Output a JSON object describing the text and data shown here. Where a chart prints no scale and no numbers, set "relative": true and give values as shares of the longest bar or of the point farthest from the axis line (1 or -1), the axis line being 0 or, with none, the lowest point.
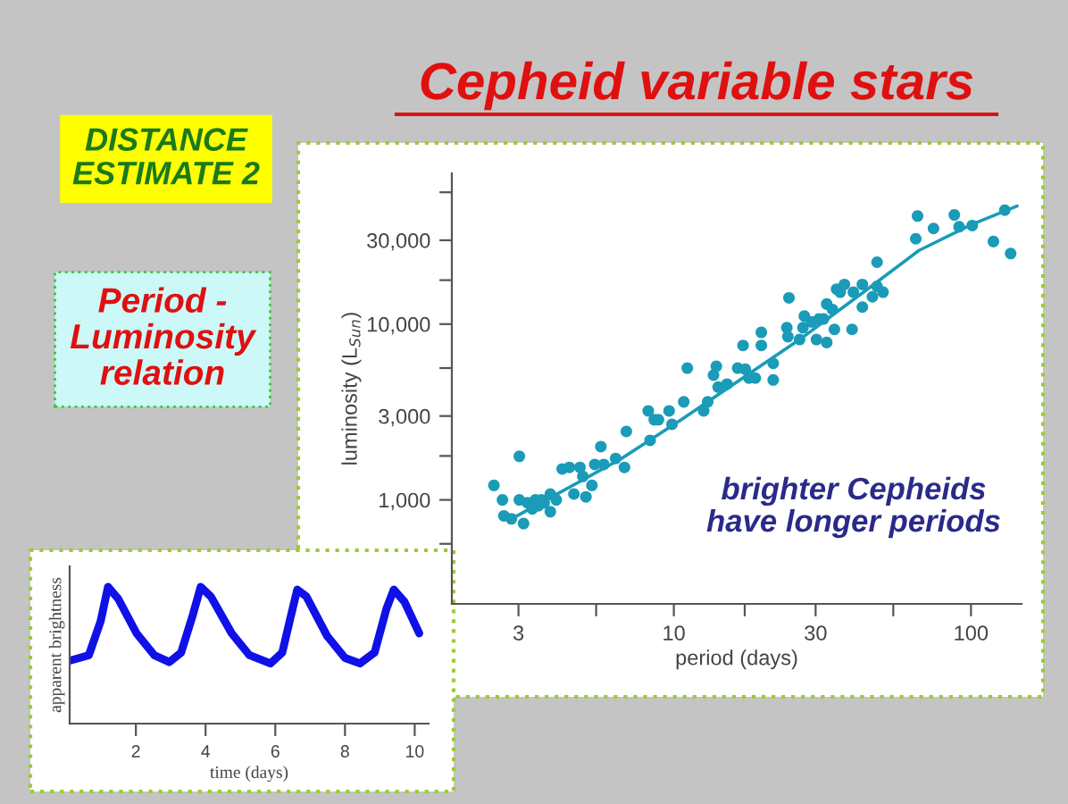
{
  "chart_data": [
    {
      "type": "scatter",
      "title": "Cepheid variable stars",
      "xlabel": "period (days)",
      "ylabel": "luminosity (L$_{Sun}$)",
      "annotations": [
        "DISTANCE\nESTIMATE 2",
        "Period -\nLuminosity\nrelation",
        "brighter Cepheids\nhave longer periods"
      ],
      "log": "xy",
      "grid": false,
      "xlim": [
        1.79,
        148
      ],
      "ylim": [
        256,
        72100
      ],
      "xticks": [
        3,
        {
          "value": 5.477,
          "label": null
        },
        10,
        {
          "value": 17.32,
          "label": null
        },
        30,
        {
          "value": 54.77,
          "label": null
        },
        100
      ],
      "yticks": [
        {
          "value": 562.3,
          "label": null
        },
        {
          "value": 1000,
          "label": "1,000"
        },
        {
          "value": 1778,
          "label": null
        },
        {
          "value": 3000,
          "label": "3,000"
        },
        {
          "value": 5623,
          "label": null
        },
        {
          "value": 10000,
          "label": "10,000"
        },
        {
          "value": 17783,
          "label": null
        },
        {
          "value": 30000,
          "label": "30,000"
        },
        {
          "value": 56234,
          "label": null
        }
      ],
      "series": [
        {
          "type": "scatter",
          "marker": "circle",
          "color": "#1a9bb8",
          "x": [
            2.48,
            2.65,
            2.68,
            2.84,
            3.02,
            3.02,
            3.12,
            3.22,
            3.34,
            3.42,
            3.5,
            3.58,
            3.66,
            3.84,
            3.84,
            4.02,
            4.21,
            4.45,
            4.61,
            4.83,
            4.94,
            5.06,
            5.3,
            5.42,
            5.68,
            5.81,
            6.37,
            6.82,
            6.92,
            8.2,
            8.32,
            8.59,
            8.87,
            9.64,
            9.86,
            10.8,
            11.1,
            12.6,
            13.0,
            13.6,
            13.9,
            14.1,
            15.1,
            16.4,
            17.1,
            17.4,
            17.9,
            18.8,
            19.7,
            19.7,
            21.6,
            21.6,
            24.0,
            24.2,
            24.4,
            26.5,
            27.2,
            27.5,
            29.1,
            30.2,
            30.8,
            31.9,
            32.7,
            32.7,
            34.2,
            34.7,
            35.3,
            36.3,
            37.5,
            39.8,
            40.2,
            43.1,
            43.1,
            46.6,
            48.3,
            48.3,
            50.6,
            65.2,
            66.1,
            74.8,
            87.9,
            91.2,
            101,
            119,
            130,
            136
          ],
          "values": [
            1210,
            1000,
            811,
            780,
            1770,
            1000,
            733,
            962,
            890,
            1000,
            925,
            1000,
            962,
            856,
            1080,
            1000,
            1500,
            1530,
            1080,
            1530,
            1360,
            1040,
            1210,
            1590,
            2010,
            1590,
            1720,
            1530,
            2450,
            3210,
            2180,
            2860,
            2860,
            3210,
            2690,
            3610,
            5620,
            3210,
            3610,
            5120,
            5750,
            4380,
            4560,
            5620,
            7560,
            5540,
            4930,
            4930,
            7560,
            8970,
            5980,
            4810,
            9540,
            8490,
            14100,
            8170,
            9540,
            11100,
            10300,
            8170,
            10700,
            10700,
            7860,
            13000,
            12100,
            9330,
            15800,
            15200,
            16800,
            9330,
            15200,
            16800,
            12500,
            14300,
            22500,
            16400,
            15200,
            30600,
            41200,
            35000,
            41800,
            35800,
            36400,
            29500,
            44500,
            25200
          ]
        },
        {
          "type": "line",
          "marker": "none",
          "color": "#1a9bb8",
          "x": [
            2.84,
            4.21,
            6.67,
            10.6,
            16.7,
            26.5,
            42.1,
            66.7,
            100,
            143
          ],
          "values": [
            780,
            1120,
            1720,
            2860,
            4810,
            8170,
            14600,
            26200,
            36700,
            47000
          ]
        }
      ]
    },
    {
      "type": "line",
      "relative": true,
      "xlabel": "time (days)",
      "ylabel": "apparent brightness",
      "grid": false,
      "xlim": [
        0.1,
        10.4
      ],
      "xticks": [
        2,
        4,
        6,
        8,
        10
      ],
      "series": [
        {
          "color": "#1010e8",
          "x": [
            0.1,
            0.65,
            0.99,
            1.2,
            1.5,
            2.02,
            2.53,
            2.96,
            3.3,
            3.64,
            3.86,
            4.15,
            4.75,
            5.26,
            5.86,
            6.2,
            6.46,
            6.63,
            6.89,
            7.49,
            8.0,
            8.43,
            8.85,
            9.19,
            9.4,
            9.71,
            10.13
          ],
          "values": [
            0.46,
            0.5,
            0.75,
            1.0,
            0.91,
            0.66,
            0.5,
            0.45,
            0.52,
            0.8,
            1.0,
            0.93,
            0.66,
            0.5,
            0.44,
            0.52,
            0.8,
            0.98,
            0.93,
            0.64,
            0.48,
            0.44,
            0.52,
            0.84,
            0.98,
            0.89,
            0.66
          ]
        }
      ]
    }
  ]
}
